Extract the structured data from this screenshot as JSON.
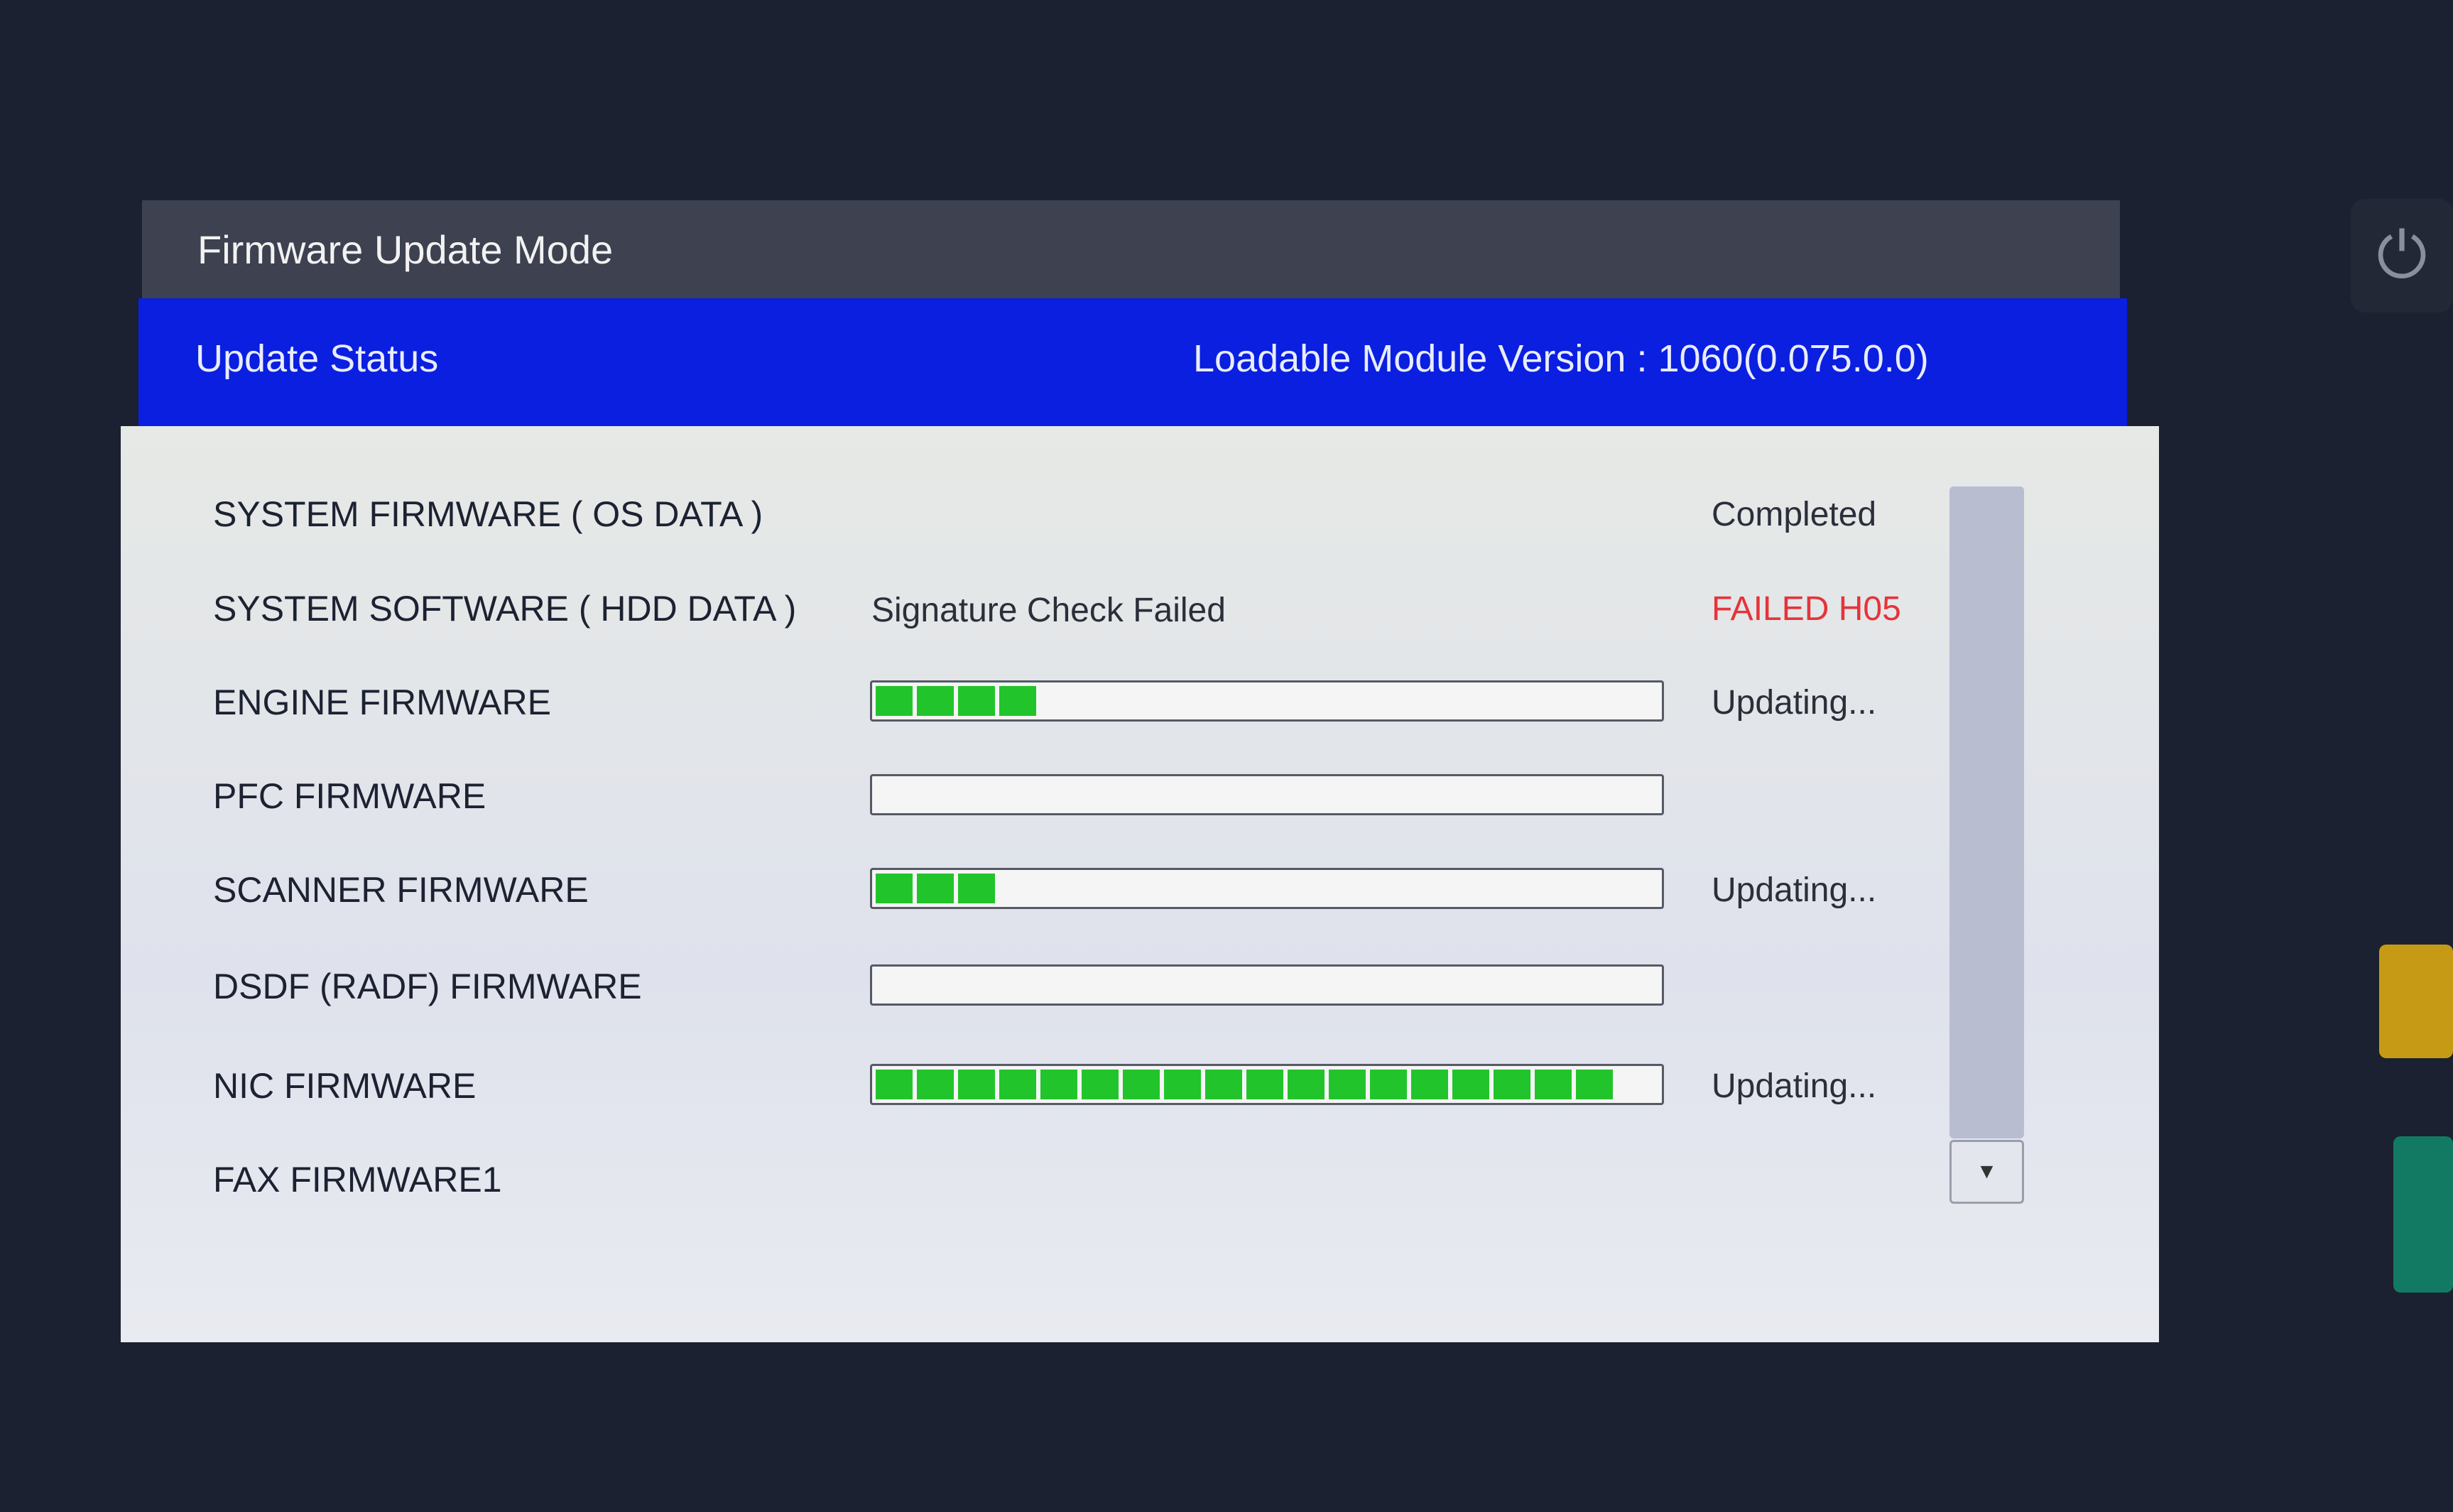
{
  "window": {
    "title": "Firmware Update Mode"
  },
  "header": {
    "title": "Update Status",
    "version_label": "Loadable Module Version : 1060(0.075.0.0)"
  },
  "colors": {
    "header_blue": "#0b1fe0",
    "progress_green": "#22c42b",
    "error_red": "#e5343a"
  },
  "items": [
    {
      "label": "SYSTEM FIRMWARE ( OS DATA )",
      "status": "Completed",
      "has_bar": false
    },
    {
      "label": "SYSTEM SOFTWARE ( HDD DATA )",
      "status": "FAILED H05",
      "message": "Signature Check Failed",
      "has_bar": false,
      "error": true
    },
    {
      "label": "ENGINE FIRMWARE",
      "status": "Updating...",
      "has_bar": true,
      "progress_percent": 21
    },
    {
      "label": "PFC FIRMWARE",
      "status": "",
      "has_bar": true,
      "progress_percent": 0
    },
    {
      "label": "SCANNER FIRMWARE",
      "status": "Updating...",
      "has_bar": true,
      "progress_percent": 16
    },
    {
      "label": "DSDF (RADF) FIRMWARE",
      "status": "",
      "has_bar": true,
      "progress_percent": 0
    },
    {
      "label": "NIC FIRMWARE",
      "status": "Updating...",
      "has_bar": true,
      "progress_percent": 95
    },
    {
      "label": "FAX FIRMWARE1",
      "status": "",
      "has_bar": false
    }
  ],
  "icons": {
    "scroll_up": "triangle-up-icon",
    "scroll_down": "triangle-down-icon",
    "power": "power-icon"
  }
}
